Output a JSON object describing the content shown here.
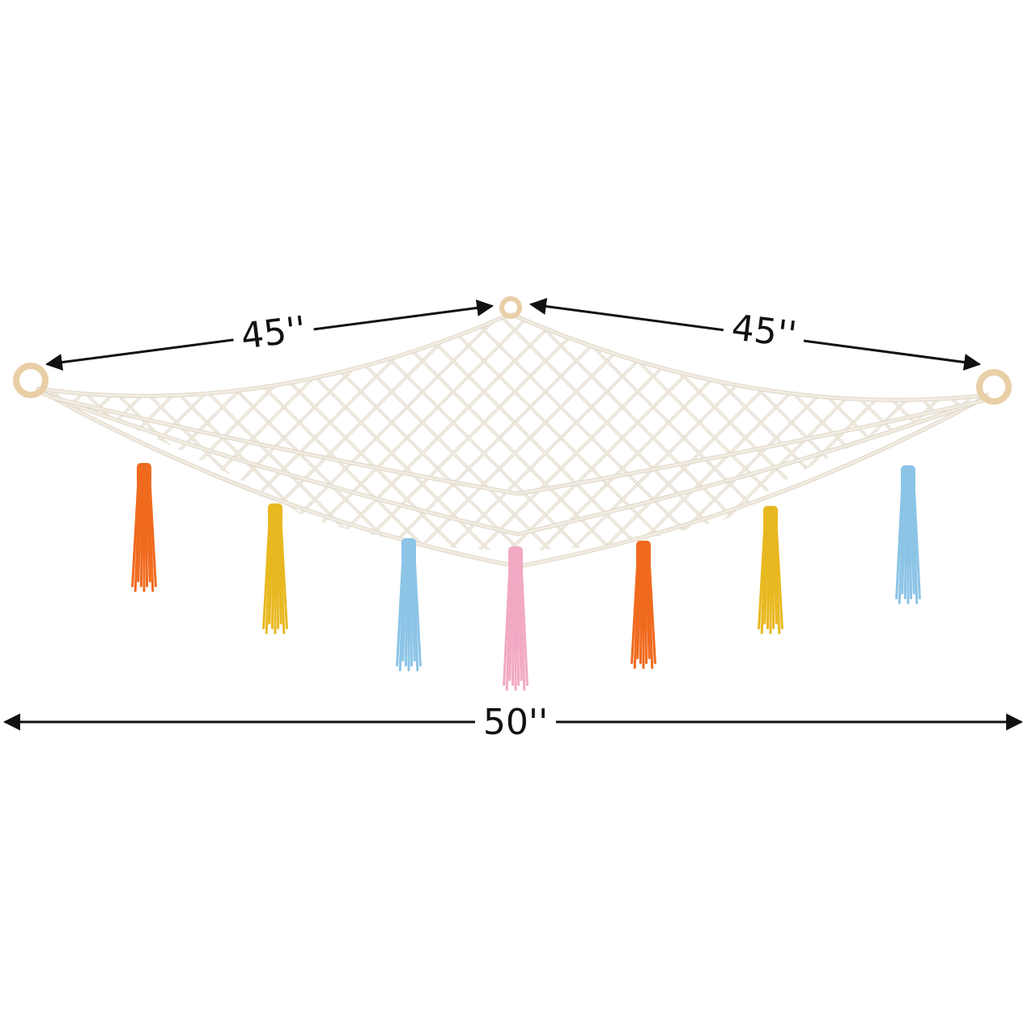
{
  "dimensions": {
    "left_span": "45''",
    "right_span": "45''",
    "total_width": "50''"
  },
  "colors": {
    "net": "#f1ebe0",
    "net_shadow": "#d9d0c2",
    "ring": "#e9cfa6",
    "arrow": "#111111",
    "tassels": [
      "#f06a1e",
      "#e8b820",
      "#8cc4e6",
      "#f2a9c4",
      "#f06a1e",
      "#e8b820",
      "#8cc4e6"
    ]
  }
}
